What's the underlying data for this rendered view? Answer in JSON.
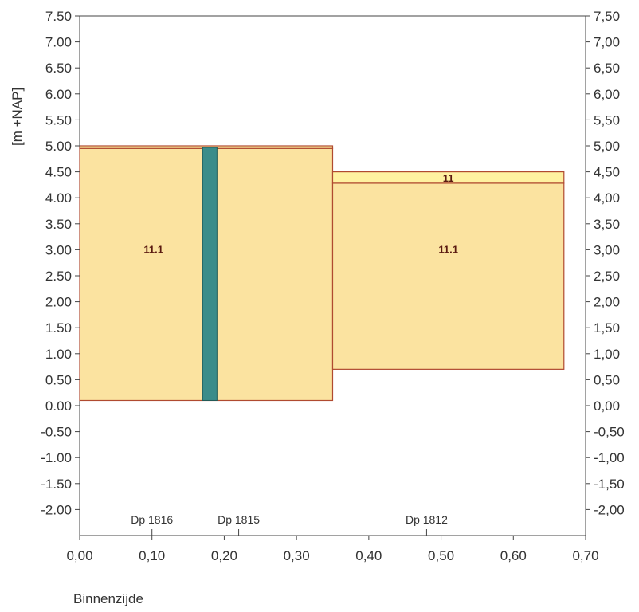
{
  "chart_data": {
    "type": "area",
    "ylabel": "[m +NAP]",
    "left_y_ticks": [
      "7.50",
      "7.00",
      "6.50",
      "6.00",
      "5.50",
      "5.00",
      "4.50",
      "4.00",
      "3.50",
      "3.00",
      "2.50",
      "2.00",
      "1.50",
      "1.00",
      "0.50",
      "0.00",
      "-0.50",
      "-1.00",
      "-1.50",
      "-2.00"
    ],
    "right_y_ticks": [
      "7,50",
      "7,00",
      "6,50",
      "6,00",
      "5,50",
      "5,00",
      "4,50",
      "4,00",
      "3,50",
      "3,00",
      "2,50",
      "2,00",
      "1,50",
      "1,00",
      "0,50",
      "0,00",
      "-0,50",
      "-1,00",
      "-1,50",
      "-2,00"
    ],
    "x_ticks": [
      "0,00",
      "0,10",
      "0,20",
      "0,30",
      "0,40",
      "0,50",
      "0,60",
      "0,70"
    ],
    "xlim": [
      0.0,
      0.7
    ],
    "ylim": [
      -2.5,
      7.5
    ],
    "boreholes": [
      {
        "label": "Dp 1816",
        "x": 0.1
      },
      {
        "label": "Dp 1815",
        "x": 0.22
      },
      {
        "label": "Dp 1812",
        "x": 0.48
      }
    ],
    "layers": [
      {
        "label": "11.1",
        "x0": 0.0,
        "x1": 0.35,
        "y_top": 4.95,
        "y_bottom": 0.1
      },
      {
        "label": "",
        "x0": 0.0,
        "x1": 0.35,
        "y_top": 5.0,
        "y_bottom": 4.95
      },
      {
        "label": "11",
        "x0": 0.35,
        "x1": 0.67,
        "y_top": 4.5,
        "y_bottom": 4.28
      },
      {
        "label": "11.1",
        "x0": 0.35,
        "x1": 0.67,
        "y_top": 4.28,
        "y_bottom": 0.7
      }
    ],
    "sheet_pile": {
      "x0": 0.17,
      "x1": 0.19,
      "y_top": 4.97,
      "y_bottom": 0.1
    },
    "colors": {
      "layer_fill": "#fbe3a0",
      "layer_edge": "#b04a30",
      "top_layer_fill": "#fff1a0",
      "sheet_pile": "#3a8c8a"
    }
  },
  "footer": "Binnenzijde"
}
